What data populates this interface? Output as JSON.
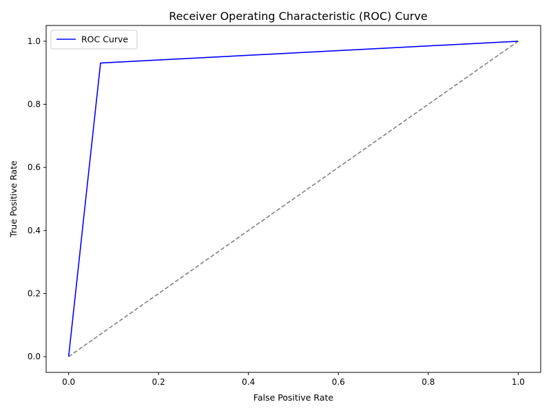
{
  "chart_data": {
    "type": "line",
    "title": "Receiver Operating Characteristic (ROC) Curve",
    "xlabel": "False Positive Rate",
    "ylabel": "True Positive Rate",
    "xlim": [
      -0.05,
      1.05
    ],
    "ylim": [
      -0.05,
      1.05
    ],
    "x_ticks": [
      0.0,
      0.2,
      0.4,
      0.6,
      0.8,
      1.0
    ],
    "x_tick_labels": [
      "0.0",
      "0.2",
      "0.4",
      "0.6",
      "0.8",
      "1.0"
    ],
    "y_ticks": [
      0.0,
      0.2,
      0.4,
      0.6,
      0.8,
      1.0
    ],
    "y_tick_labels": [
      "0.0",
      "0.2",
      "0.4",
      "0.6",
      "0.8",
      "1.0"
    ],
    "grid": false,
    "legend_position": "upper-left",
    "series": [
      {
        "name": "ROC Curve",
        "color": "#0000ff",
        "style": "solid",
        "x": [
          0.0,
          0.071,
          1.0
        ],
        "y": [
          0.0,
          0.931,
          1.0
        ]
      },
      {
        "color": "#808080",
        "style": "dashed",
        "x": [
          0.0,
          1.0
        ],
        "y": [
          0.0,
          1.0
        ]
      }
    ]
  }
}
